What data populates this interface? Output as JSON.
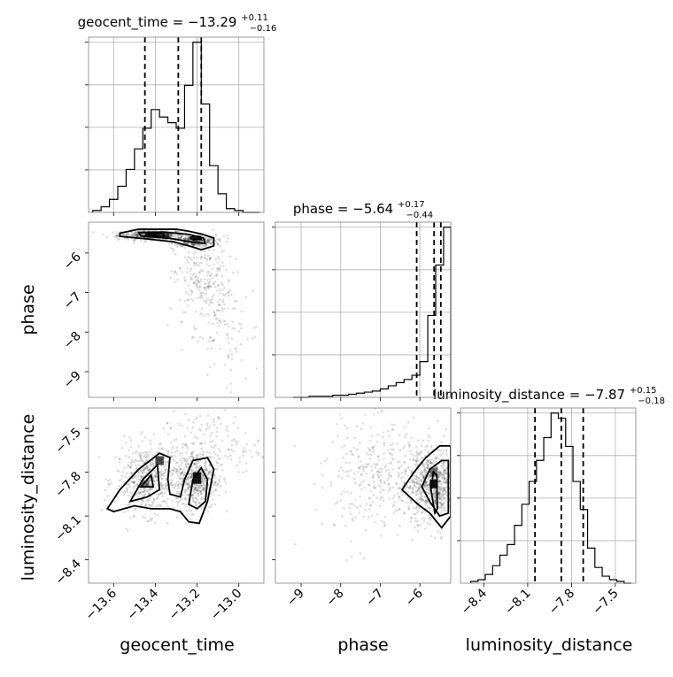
{
  "chart_data": {
    "type": "corner",
    "parameters": [
      "geocent_time",
      "phase",
      "luminosity_distance"
    ],
    "ranges": {
      "geocent_time": [
        -13.72,
        -12.88
      ],
      "phase": [
        -9.65,
        -5.22
      ],
      "luminosity_distance": [
        -8.56,
        -7.36
      ]
    },
    "ticks": {
      "geocent_time": [
        -13.6,
        -13.4,
        -13.2,
        -13.0
      ],
      "phase": [
        -9,
        -8,
        -7,
        -6
      ],
      "luminosity_distance": [
        -8.4,
        -8.1,
        -7.8,
        -7.5
      ]
    },
    "tick_labels": {
      "geocent_time": [
        "−13.6",
        "−13.4",
        "−13.2",
        "−13.0"
      ],
      "phase": [
        "−9",
        "−8",
        "−7",
        "−6"
      ],
      "luminosity_distance": [
        "−8.4",
        "−8.1",
        "−7.8",
        "−7.5"
      ]
    },
    "axis_labels": {
      "geocent_time": "geocent_time",
      "phase": "phase",
      "luminosity_distance": "luminosity_distance"
    },
    "titles": [
      {
        "param": "geocent_time",
        "prefix": "geocent_time = −13.29",
        "plus": "+0.11",
        "minus": "−0.16"
      },
      {
        "param": "phase",
        "prefix": "phase = −5.64",
        "plus": "+0.17",
        "minus": "−0.44"
      },
      {
        "param": "luminosity_distance",
        "prefix": "luminosity_distance = −7.87",
        "plus": "+0.15",
        "minus": "−0.18"
      }
    ],
    "quantiles": {
      "geocent_time": [
        -13.45,
        -13.29,
        -13.18
      ],
      "phase": [
        -6.08,
        -5.64,
        -5.47
      ],
      "luminosity_distance": [
        -8.05,
        -7.87,
        -7.72
      ]
    },
    "histograms": {
      "geocent_time": {
        "bins": [
          -13.7,
          -13.66,
          -13.62,
          -13.58,
          -13.54,
          -13.5,
          -13.46,
          -13.42,
          -13.38,
          -13.34,
          -13.3,
          -13.26,
          -13.22,
          -13.18,
          -13.14,
          -13.1,
          -13.06,
          -13.02,
          -12.98,
          -12.94,
          -12.9
        ],
        "counts": [
          1,
          3,
          7,
          14,
          23,
          34,
          45,
          55,
          51,
          48,
          45,
          68,
          91,
          58,
          25,
          10,
          2,
          1,
          0,
          0
        ]
      },
      "phase": {
        "bins": [
          -9.2,
          -9.0,
          -8.8,
          -8.6,
          -8.4,
          -8.2,
          -8.0,
          -7.8,
          -7.6,
          -7.4,
          -7.2,
          -7.0,
          -6.8,
          -6.6,
          -6.4,
          -6.2,
          -6.0,
          -5.8,
          -5.6,
          -5.4,
          -5.22
        ],
        "counts": [
          0,
          0,
          1,
          1,
          1,
          2,
          2,
          3,
          4,
          5,
          6,
          8,
          11,
          14,
          17,
          21,
          34,
          78,
          126,
          162
        ]
      },
      "luminosity_distance": {
        "bins": [
          -8.49,
          -8.44,
          -8.39,
          -8.34,
          -8.29,
          -8.24,
          -8.19,
          -8.14,
          -8.09,
          -8.04,
          -7.99,
          -7.94,
          -7.89,
          -7.84,
          -7.79,
          -7.74,
          -7.69,
          -7.64,
          -7.59,
          -7.54,
          -7.49,
          -7.44,
          -7.39
        ],
        "counts": [
          1,
          2,
          5,
          10,
          16,
          22,
          33,
          45,
          58,
          70,
          83,
          97,
          94,
          78,
          58,
          42,
          20,
          9,
          4,
          2,
          1,
          0
        ]
      }
    },
    "density_2d": [
      {
        "x": "geocent_time",
        "y": "phase",
        "cores": [
          {
            "x": -13.42,
            "y": -5.55,
            "sx": 0.08,
            "sy": 0.06,
            "n": 420
          },
          {
            "x": -13.21,
            "y": -5.7,
            "sx": 0.05,
            "sy": 0.07,
            "n": 300
          },
          {
            "x": -13.17,
            "y": -6.7,
            "sx": 0.07,
            "sy": 0.55,
            "n": 240
          },
          {
            "x": -13.07,
            "y": -8.1,
            "sx": 0.09,
            "sy": 0.7,
            "n": 90
          }
        ],
        "contours": [
          [
            [
              -13.57,
              -5.5
            ],
            [
              -13.48,
              -5.4
            ],
            [
              -13.3,
              -5.4
            ],
            [
              -13.24,
              -5.45
            ],
            [
              -13.18,
              -5.52
            ],
            [
              -13.12,
              -5.62
            ],
            [
              -13.12,
              -5.82
            ],
            [
              -13.18,
              -5.92
            ],
            [
              -13.22,
              -5.85
            ],
            [
              -13.31,
              -5.72
            ],
            [
              -13.45,
              -5.64
            ],
            [
              -13.57,
              -5.58
            ]
          ],
          [
            [
              -13.48,
              -5.48
            ],
            [
              -13.36,
              -5.47
            ],
            [
              -13.24,
              -5.53
            ],
            [
              -13.17,
              -5.62
            ],
            [
              -13.16,
              -5.76
            ],
            [
              -13.22,
              -5.73
            ],
            [
              -13.33,
              -5.63
            ],
            [
              -13.47,
              -5.57
            ]
          ],
          [
            [
              -13.44,
              -5.52
            ],
            [
              -13.36,
              -5.5
            ],
            [
              -13.36,
              -5.58
            ],
            [
              -13.44,
              -5.58
            ]
          ],
          [
            [
              -13.23,
              -5.6
            ],
            [
              -13.19,
              -5.58
            ],
            [
              -13.18,
              -5.66
            ],
            [
              -13.23,
              -5.64
            ]
          ]
        ],
        "cells": [
          {
            "x": -13.42,
            "y": -5.55,
            "w": 0.06,
            "h": 0.1,
            "level": 0.9
          },
          {
            "x": -13.36,
            "y": -5.55,
            "w": 0.05,
            "h": 0.1,
            "level": 0.6
          },
          {
            "x": -13.2,
            "y": -5.62,
            "w": 0.04,
            "h": 0.1,
            "level": 0.7
          }
        ]
      },
      {
        "x": "geocent_time",
        "y": "luminosity_distance",
        "cores": [
          {
            "x": -13.43,
            "y": -7.85,
            "sx": 0.08,
            "sy": 0.12,
            "n": 520
          },
          {
            "x": -13.2,
            "y": -7.85,
            "sx": 0.05,
            "sy": 0.1,
            "n": 420
          },
          {
            "x": -13.13,
            "y": -7.62,
            "sx": 0.12,
            "sy": 0.12,
            "n": 160
          }
        ],
        "contours": [
          [
            [
              -13.63,
              -8.05
            ],
            [
              -13.57,
              -7.92
            ],
            [
              -13.48,
              -7.78
            ],
            [
              -13.38,
              -7.67
            ],
            [
              -13.33,
              -7.7
            ],
            [
              -13.34,
              -7.85
            ],
            [
              -13.33,
              -7.95
            ],
            [
              -13.28,
              -7.97
            ],
            [
              -13.26,
              -7.85
            ],
            [
              -13.22,
              -7.72
            ],
            [
              -13.15,
              -7.7
            ],
            [
              -13.12,
              -7.78
            ],
            [
              -13.15,
              -8.0
            ],
            [
              -13.19,
              -8.15
            ],
            [
              -13.24,
              -8.14
            ],
            [
              -13.28,
              -8.07
            ],
            [
              -13.33,
              -8.05
            ],
            [
              -13.42,
              -8.05
            ],
            [
              -13.5,
              -8.03
            ],
            [
              -13.6,
              -8.07
            ]
          ],
          [
            [
              -13.52,
              -8.0
            ],
            [
              -13.46,
              -7.85
            ],
            [
              -13.39,
              -7.75
            ],
            [
              -13.38,
              -7.92
            ],
            [
              -13.44,
              -7.97
            ]
          ],
          [
            [
              -13.24,
              -8.02
            ],
            [
              -13.22,
              -7.85
            ],
            [
              -13.18,
              -7.77
            ],
            [
              -13.15,
              -7.85
            ],
            [
              -13.16,
              -8.0
            ],
            [
              -13.2,
              -8.05
            ]
          ],
          [
            [
              -13.47,
              -7.9
            ],
            [
              -13.42,
              -7.82
            ],
            [
              -13.41,
              -7.9
            ]
          ]
        ],
        "cells": [
          {
            "x": -13.38,
            "y": -7.72,
            "w": 0.04,
            "h": 0.06,
            "level": 0.7
          },
          {
            "x": -13.2,
            "y": -7.84,
            "w": 0.04,
            "h": 0.08,
            "level": 0.9
          },
          {
            "x": -13.45,
            "y": -7.88,
            "w": 0.04,
            "h": 0.05,
            "level": 0.5
          }
        ]
      },
      {
        "x": "phase",
        "y": "luminosity_distance",
        "cores": [
          {
            "x": -5.65,
            "y": -7.88,
            "sx": 0.3,
            "sy": 0.12,
            "n": 650
          },
          {
            "x": -6.7,
            "y": -7.85,
            "sx": 0.7,
            "sy": 0.18,
            "n": 320
          },
          {
            "x": -7.7,
            "y": -7.8,
            "sx": 0.6,
            "sy": 0.25,
            "n": 70
          }
        ],
        "contours": [
          [
            [
              -6.45,
              -7.92
            ],
            [
              -6.15,
              -7.8
            ],
            [
              -5.85,
              -7.7
            ],
            [
              -5.5,
              -7.62
            ],
            [
              -5.22,
              -7.62
            ],
            [
              -5.22,
              -8.1
            ],
            [
              -5.45,
              -8.18
            ],
            [
              -5.75,
              -8.08
            ],
            [
              -6.05,
              -8.02
            ]
          ],
          [
            [
              -5.95,
              -7.9
            ],
            [
              -5.75,
              -7.78
            ],
            [
              -5.45,
              -7.72
            ],
            [
              -5.28,
              -7.72
            ],
            [
              -5.28,
              -8.08
            ],
            [
              -5.5,
              -8.1
            ],
            [
              -5.75,
              -8.0
            ]
          ],
          [
            [
              -5.72,
              -7.92
            ],
            [
              -5.66,
              -7.8
            ],
            [
              -5.57,
              -7.82
            ],
            [
              -5.56,
              -8.05
            ],
            [
              -5.62,
              -8.08
            ]
          ]
        ],
        "cells": [
          {
            "x": -5.65,
            "y": -7.88,
            "w": 0.2,
            "h": 0.06,
            "level": 0.9
          },
          {
            "x": -5.65,
            "y": -7.8,
            "w": 0.2,
            "h": 0.06,
            "level": 0.5
          }
        ]
      }
    ]
  }
}
